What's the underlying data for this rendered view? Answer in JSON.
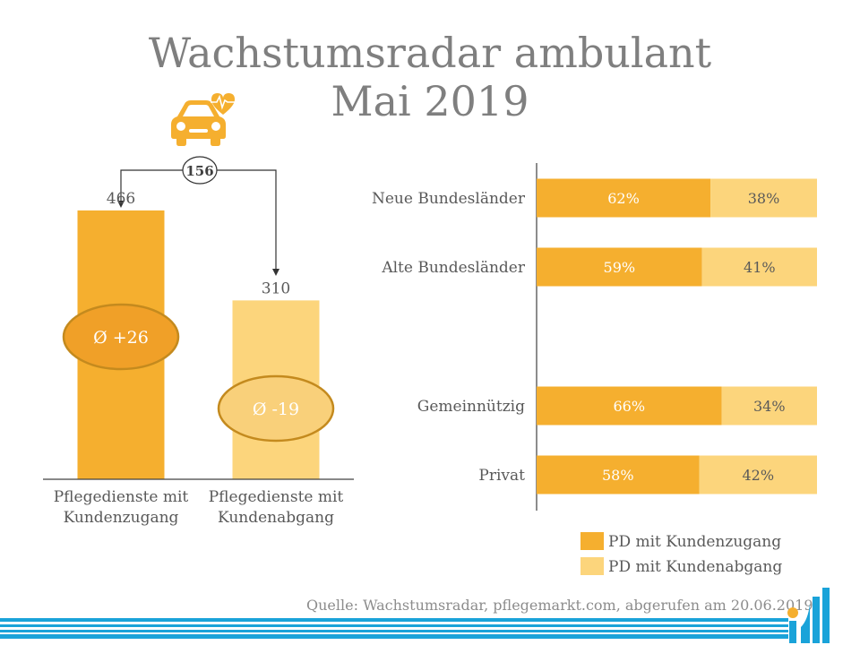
{
  "title_line1": "Wachstumsradar ambulant",
  "title_line2": "Mai 2019",
  "source": "Quelle: Wachstumsradar, pflegemarkt.com, abgerufen am 20.06.2019",
  "colors": {
    "dark": "#F5AF2F",
    "light": "#FCD57C",
    "ellipse_dark": "#F0A028",
    "ellipse_light": "#F9D07A",
    "ellipse_stroke": "#C48A1E",
    "accent_blue": "#1AA3D9"
  },
  "chart_data": [
    {
      "type": "bar",
      "categories": [
        "Pflegedienste mit Kundenzugang",
        "Pflegedienste mit Kundenabgang"
      ],
      "category_lines": [
        [
          "Pflegedienste mit",
          "Kundenzugang"
        ],
        [
          "Pflegedienste mit",
          "Kundenabgang"
        ]
      ],
      "values": [
        466,
        310
      ],
      "value_labels": [
        "466",
        "310"
      ],
      "averages": [
        "Ø +26",
        "Ø -19"
      ],
      "difference_label": "156",
      "ylim": [
        0,
        560
      ],
      "grid": false
    },
    {
      "type": "bar",
      "orientation": "horizontal",
      "stacked": true,
      "categories": [
        "Neue Bundesländer",
        "Alte Bundesländer",
        "Gemeinnützig",
        "Privat"
      ],
      "series": [
        {
          "name": "PD mit Kundenzugang",
          "values": [
            62,
            59,
            66,
            58
          ],
          "labels": [
            "62%",
            "59%",
            "66%",
            "58%"
          ]
        },
        {
          "name": "PD mit Kundenabgang",
          "values": [
            38,
            41,
            34,
            42
          ],
          "labels": [
            "38%",
            "41%",
            "34%",
            "42%"
          ]
        }
      ],
      "xlim": [
        0,
        100
      ],
      "legend_position": "bottom"
    }
  ]
}
